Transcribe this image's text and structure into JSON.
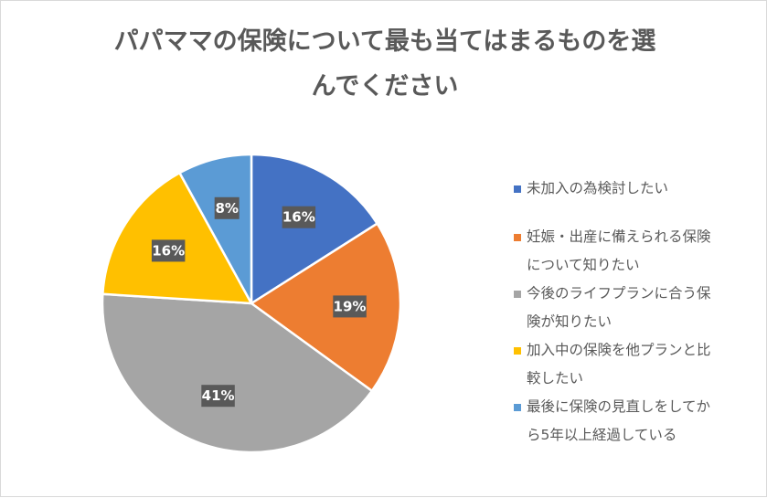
{
  "chart_data": {
    "type": "pie",
    "title_lines": [
      "パパママの保険について最も当てはまるものを選",
      "んでください"
    ],
    "labels": [
      "未加入の為検討したい",
      "妊娠・出産に備えられる保険について知りたい",
      "今後のライフプランに合う保険が知りたい",
      "加入中の保険を他プランと比較したい",
      "最後に保険の見直しをしてから5年以上経過している"
    ],
    "label_lines": [
      [
        "未加入の為検討したい"
      ],
      [
        "妊娠・出産に備えられる保険",
        "について知りたい"
      ],
      [
        "今後のライフプランに合う保",
        "険が知りたい"
      ],
      [
        "加入中の保険を他プランと比",
        "較したい"
      ],
      [
        "最後に保険の見直しをしてか",
        "ら5年以上経過している"
      ]
    ],
    "values": [
      16,
      19,
      41,
      16,
      8
    ],
    "value_labels": [
      "16%",
      "19%",
      "41%",
      "16%",
      "8%"
    ],
    "colors": [
      "#4472c4",
      "#ed7d31",
      "#a5a5a5",
      "#ffc000",
      "#5b9bd5"
    ],
    "legend_position": "right"
  }
}
